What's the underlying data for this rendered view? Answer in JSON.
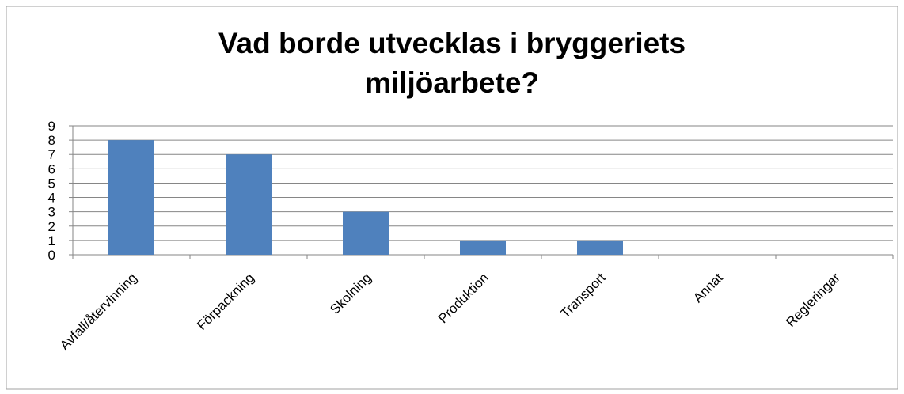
{
  "chart_data": {
    "type": "bar",
    "title": "Vad borde utvecklas i bryggeriets miljöarbete?",
    "categories": [
      "Avfall/återvinning",
      "Förpackning",
      "Skolning",
      "Produktion",
      "Transport",
      "Annat",
      "Regleringar"
    ],
    "values": [
      8,
      7,
      3,
      1,
      1,
      0,
      0
    ],
    "color": "#4f81bd",
    "ylim": [
      0,
      9
    ],
    "yticks": [
      0,
      1,
      2,
      3,
      4,
      5,
      6,
      7,
      8,
      9
    ],
    "grid": true
  }
}
